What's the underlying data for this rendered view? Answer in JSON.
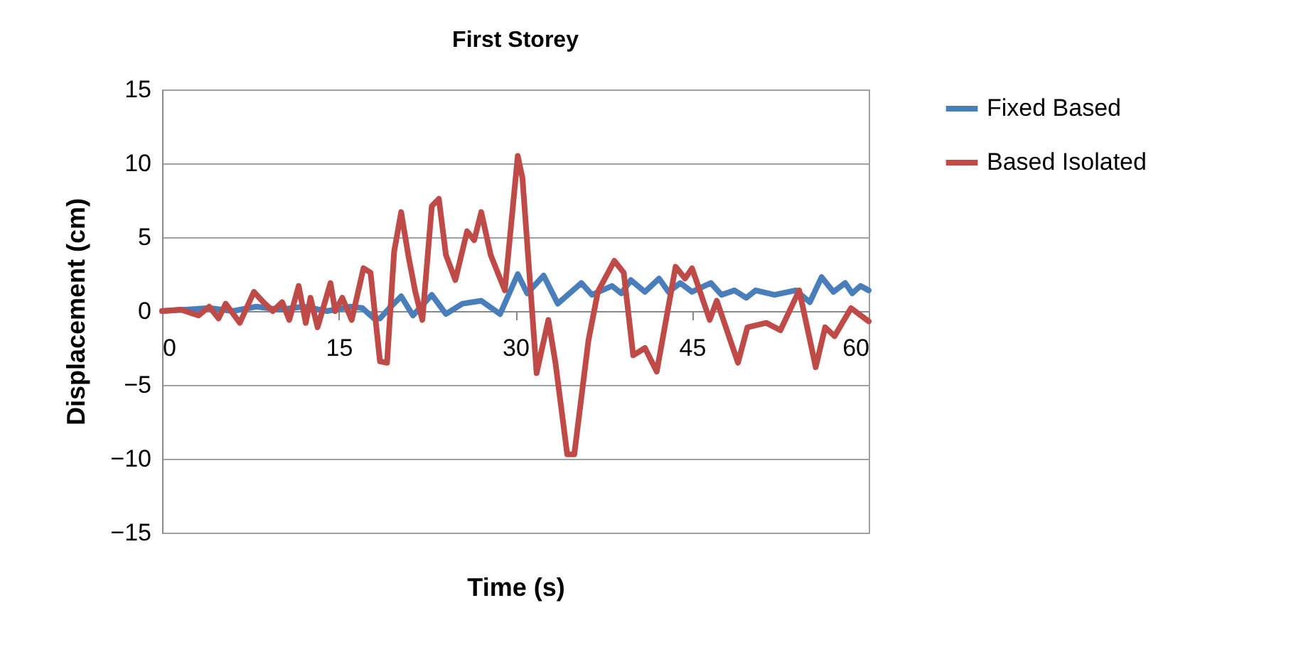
{
  "chart_data": {
    "type": "line",
    "title": "First Storey",
    "xlabel": "Time (s)",
    "ylabel": "Displacement (cm)",
    "xlim": [
      0,
      60
    ],
    "xticks": [
      0,
      15,
      30,
      45,
      60
    ],
    "ylim": [
      -15,
      15
    ],
    "yticks": [
      -15,
      -10,
      -5,
      0,
      5,
      10,
      15
    ],
    "grid": "y",
    "legend": "right",
    "marker": "none",
    "line_style": "solid",
    "series": [
      {
        "name": "Fixed Based",
        "color": "#4a7ebb",
        "x": [
          0,
          2,
          4,
          6,
          8,
          10,
          12,
          14,
          16,
          17,
          18,
          18.5,
          19.3,
          20.3,
          21.3,
          22.9,
          24.1,
          25.5,
          27.1,
          28.7,
          30.2,
          31,
          32.4,
          33.6,
          35.6,
          36.5,
          38.2,
          39,
          39.8,
          41,
          42.2,
          43,
          44,
          45,
          46.6,
          47.5,
          48.6,
          49.6,
          50.4,
          52,
          53.8,
          55,
          56,
          57,
          58,
          58.6,
          59.3,
          60
        ],
        "values": [
          0,
          0.1,
          0.2,
          0,
          0.3,
          0.1,
          0.3,
          0,
          0.3,
          0.2,
          -0.5,
          -0.5,
          0.2,
          1.0,
          -0.3,
          1.1,
          -0.2,
          0.5,
          0.7,
          -0.2,
          2.5,
          1.2,
          2.4,
          0.5,
          1.9,
          1.1,
          1.7,
          1.2,
          2.1,
          1.3,
          2.2,
          1.3,
          1.9,
          1.3,
          1.9,
          1.1,
          1.4,
          0.9,
          1.4,
          1.1,
          1.4,
          0.6,
          2.3,
          1.3,
          1.9,
          1.2,
          1.7,
          1.4
        ]
      },
      {
        "name": "Based Isolated",
        "color": "#be4b48",
        "x": [
          0,
          1.6,
          3.1,
          4,
          4.8,
          5.4,
          6.6,
          7.8,
          8.6,
          9.4,
          10.2,
          10.8,
          11.6,
          12.2,
          12.6,
          13.2,
          14.3,
          14.7,
          15.3,
          16.1,
          17.1,
          17.7,
          18.5,
          19.1,
          19.7,
          20.3,
          20.9,
          21.5,
          22.1,
          22.9,
          23.5,
          24.1,
          24.9,
          25.9,
          26.5,
          27.1,
          27.9,
          29.1,
          30.2,
          30.6,
          31.8,
          32.8,
          33.4,
          34.4,
          35,
          36.2,
          37,
          38.4,
          39.2,
          40,
          41,
          42,
          43.6,
          44.4,
          45,
          46.5,
          47.1,
          48.9,
          49.7,
          51.3,
          52.5,
          54.1,
          55.5,
          56.3,
          57.1,
          58.5,
          60
        ],
        "values": [
          0,
          0.1,
          -0.3,
          0.3,
          -0.5,
          0.5,
          -0.8,
          1.3,
          0.6,
          0,
          0.6,
          -0.6,
          1.7,
          -0.8,
          0.9,
          -1.1,
          1.9,
          0,
          0.9,
          -0.6,
          2.9,
          2.6,
          -3.4,
          -3.5,
          4.0,
          6.7,
          3.8,
          1.3,
          -0.6,
          7.1,
          7.6,
          3.8,
          2.1,
          5.4,
          4.8,
          6.7,
          3.8,
          1.4,
          10.5,
          9.0,
          -4.2,
          -0.6,
          -3.5,
          -9.7,
          -9.7,
          -2.0,
          1.3,
          3.4,
          2.6,
          -3.0,
          -2.5,
          -4.1,
          3.0,
          2.2,
          2.9,
          -0.6,
          0.7,
          -3.5,
          -1.1,
          -0.8,
          -1.3,
          1.4,
          -3.8,
          -1.1,
          -1.7,
          0.2,
          -0.7
        ]
      }
    ]
  }
}
